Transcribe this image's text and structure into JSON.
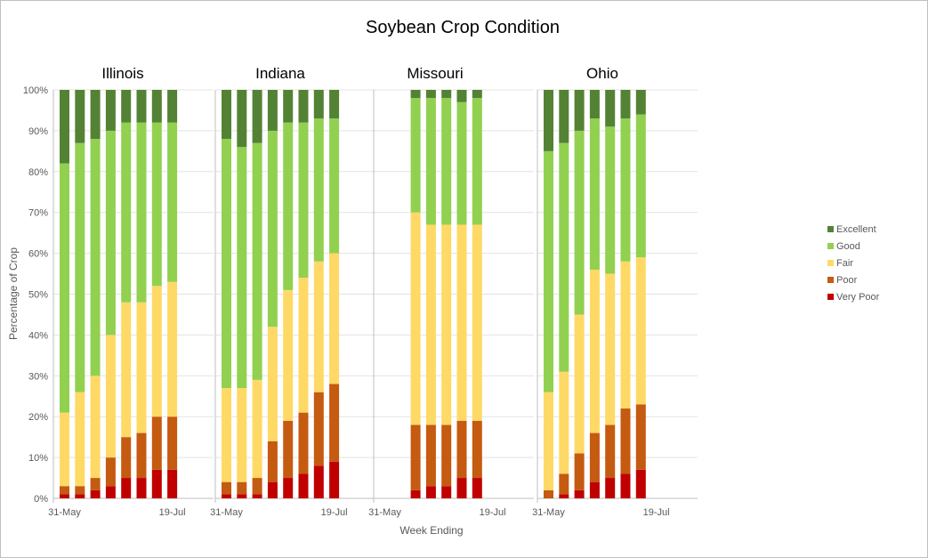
{
  "chart_data": {
    "type": "bar",
    "stacked": true,
    "title": "Soybean Crop Condition",
    "xlabel": "Week Ending",
    "ylabel": "Percentage of Crop",
    "ylim": [
      0,
      100
    ],
    "y_ticks": [
      "0%",
      "10%",
      "20%",
      "30%",
      "40%",
      "50%",
      "60%",
      "70%",
      "80%",
      "90%",
      "100%"
    ],
    "x_ticks_shown": [
      "31-May",
      "19-Jul"
    ],
    "categories": [
      "31-May",
      "7-Jun",
      "14-Jun",
      "21-Jun",
      "28-Jun",
      "5-Jul",
      "12-Jul",
      "19-Jul"
    ],
    "series_names": [
      "Very Poor",
      "Poor",
      "Fair",
      "Good",
      "Excellent"
    ],
    "legend_order": [
      "Excellent",
      "Good",
      "Fair",
      "Poor",
      "Very Poor"
    ],
    "legend_position": "right",
    "colors": {
      "Excellent": "#548235",
      "Good": "#92d050",
      "Fair": "#ffd966",
      "Poor": "#c55a11",
      "Very Poor": "#c00000"
    },
    "grid": true,
    "panels": [
      {
        "name": "Illinois",
        "bars": [
          {
            "week": "31-May",
            "values": [
              1,
              2,
              18,
              61,
              18
            ]
          },
          {
            "week": "7-Jun",
            "values": [
              1,
              2,
              23,
              61,
              13
            ]
          },
          {
            "week": "14-Jun",
            "values": [
              2,
              3,
              25,
              58,
              12
            ]
          },
          {
            "week": "21-Jun",
            "values": [
              3,
              7,
              30,
              50,
              10
            ]
          },
          {
            "week": "28-Jun",
            "values": [
              5,
              10,
              33,
              44,
              8
            ]
          },
          {
            "week": "5-Jul",
            "values": [
              5,
              11,
              32,
              44,
              8
            ]
          },
          {
            "week": "12-Jul",
            "values": [
              7,
              13,
              32,
              40,
              8
            ]
          },
          {
            "week": "19-Jul",
            "values": [
              7,
              13,
              33,
              39,
              8
            ]
          }
        ]
      },
      {
        "name": "Indiana",
        "bars": [
          {
            "week": "31-May",
            "values": [
              1,
              3,
              23,
              61,
              12
            ]
          },
          {
            "week": "7-Jun",
            "values": [
              1,
              3,
              23,
              59,
              14
            ]
          },
          {
            "week": "14-Jun",
            "values": [
              1,
              4,
              24,
              58,
              13
            ]
          },
          {
            "week": "21-Jun",
            "values": [
              4,
              10,
              28,
              48,
              10
            ]
          },
          {
            "week": "28-Jun",
            "values": [
              5,
              14,
              32,
              41,
              8
            ]
          },
          {
            "week": "5-Jul",
            "values": [
              6,
              15,
              33,
              38,
              8
            ]
          },
          {
            "week": "12-Jul",
            "values": [
              8,
              18,
              32,
              35,
              7
            ]
          },
          {
            "week": "19-Jul",
            "values": [
              9,
              19,
              32,
              33,
              7
            ]
          }
        ]
      },
      {
        "name": "Missouri",
        "bars": [
          {
            "week": "14-Jun",
            "values": [
              2,
              16,
              52,
              28,
              2
            ]
          },
          {
            "week": "21-Jun",
            "values": [
              3,
              15,
              49,
              31,
              2
            ]
          },
          {
            "week": "28-Jun",
            "values": [
              3,
              15,
              49,
              31,
              2
            ]
          },
          {
            "week": "5-Jul",
            "values": [
              5,
              14,
              48,
              30,
              3
            ]
          },
          {
            "week": "12-Jul",
            "values": [
              5,
              14,
              48,
              31,
              2
            ]
          }
        ]
      },
      {
        "name": "Ohio",
        "bars": [
          {
            "week": "31-May",
            "values": [
              0,
              2,
              24,
              59,
              15
            ]
          },
          {
            "week": "7-Jun",
            "values": [
              1,
              5,
              25,
              56,
              13
            ]
          },
          {
            "week": "14-Jun",
            "values": [
              2,
              9,
              34,
              45,
              10
            ]
          },
          {
            "week": "21-Jun",
            "values": [
              4,
              12,
              40,
              37,
              7
            ]
          },
          {
            "week": "28-Jun",
            "values": [
              5,
              13,
              37,
              36,
              9
            ]
          },
          {
            "week": "5-Jul",
            "values": [
              6,
              16,
              36,
              35,
              7
            ]
          },
          {
            "week": "12-Jul",
            "values": [
              7,
              16,
              36,
              35,
              6
            ]
          }
        ]
      }
    ]
  }
}
